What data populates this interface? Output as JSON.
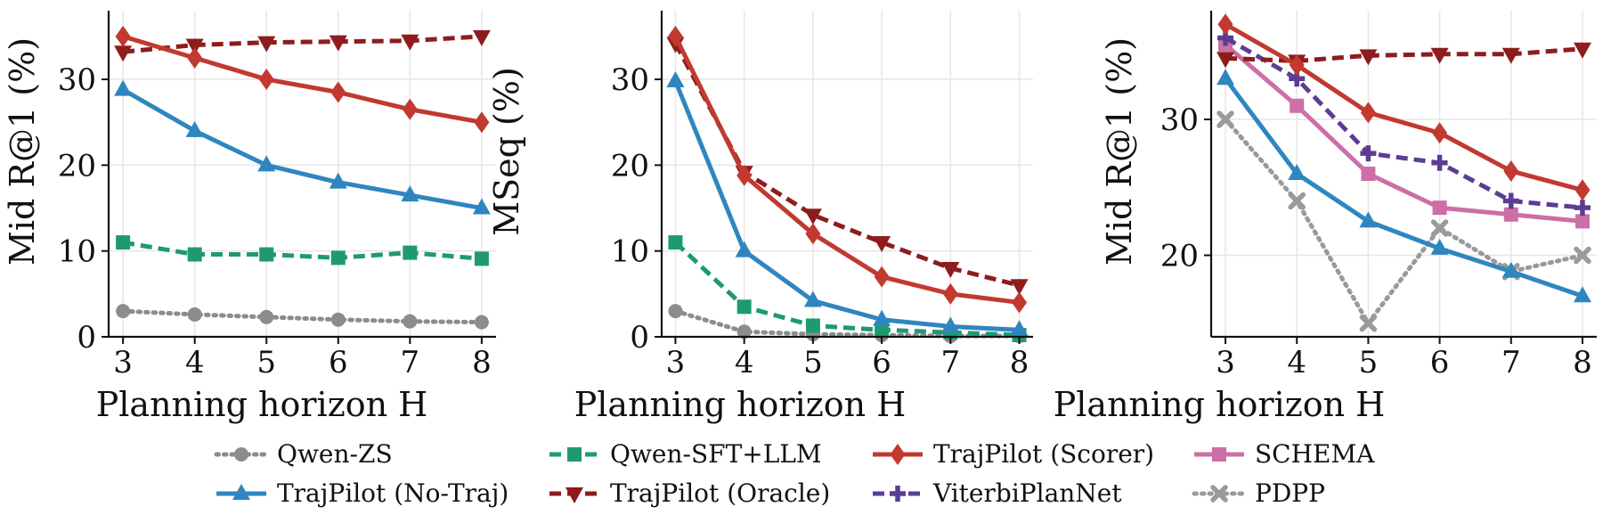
{
  "series_styles": {
    "Qwen-ZS": {
      "color": "#8c8c8c",
      "dash": "dotted",
      "marker": "circle"
    },
    "Qwen-SFT+LLM": {
      "color": "#1f9a70",
      "dash": "dashed",
      "marker": "square"
    },
    "TrajPilot (Scorer)": {
      "color": "#c1392f",
      "dash": "solid",
      "marker": "diamond"
    },
    "SCHEMA": {
      "color": "#cc6fa6",
      "dash": "solid",
      "marker": "square"
    },
    "TrajPilot (No-Traj)": {
      "color": "#2f86bf",
      "dash": "solid",
      "marker": "triangle-up"
    },
    "TrajPilot (Oracle)": {
      "color": "#8e1c1c",
      "dash": "dashed",
      "marker": "triangle-down"
    },
    "ViterbiPlanNet": {
      "color": "#5b3d94",
      "dash": "dashed",
      "marker": "plus"
    },
    "PDPP": {
      "color": "#9a9a9a",
      "dash": "dotted",
      "marker": "x"
    }
  },
  "legend": {
    "entries": [
      "Qwen-ZS",
      "Qwen-SFT+LLM",
      "TrajPilot (Scorer)",
      "SCHEMA",
      "TrajPilot (No-Traj)",
      "TrajPilot (Oracle)",
      "ViterbiPlanNet",
      "PDPP"
    ]
  },
  "chart_data": [
    {
      "type": "line",
      "xlabel": "Planning horizon H",
      "ylabel": "Mid R@1 (%)",
      "x": [
        3,
        4,
        5,
        6,
        7,
        8
      ],
      "xlim": [
        2.8,
        8.2
      ],
      "ylim": [
        0,
        38
      ],
      "yticks": [
        0,
        10,
        20,
        30
      ],
      "grid": true,
      "series": [
        {
          "name": "Qwen-ZS",
          "values": [
            3.0,
            2.6,
            2.3,
            2.0,
            1.8,
            1.7
          ]
        },
        {
          "name": "Qwen-SFT+LLM",
          "values": [
            11.0,
            9.6,
            9.6,
            9.2,
            9.8,
            9.1
          ]
        },
        {
          "name": "TrajPilot (No-Traj)",
          "values": [
            28.8,
            24.0,
            20.0,
            18.0,
            16.5,
            15.0
          ]
        },
        {
          "name": "TrajPilot (Oracle)",
          "values": [
            33.2,
            34.0,
            34.3,
            34.4,
            34.5,
            35.0
          ]
        },
        {
          "name": "TrajPilot (Scorer)",
          "values": [
            35.0,
            32.5,
            30.0,
            28.5,
            26.5,
            25.0
          ]
        }
      ]
    },
    {
      "type": "line",
      "xlabel": "Planning horizon H",
      "ylabel": "MSeq (%)",
      "x": [
        3,
        4,
        5,
        6,
        7,
        8
      ],
      "xlim": [
        2.8,
        8.2
      ],
      "ylim": [
        0,
        38
      ],
      "yticks": [
        0,
        10,
        20,
        30
      ],
      "grid": true,
      "series": [
        {
          "name": "Qwen-ZS",
          "values": [
            3.0,
            0.6,
            0.3,
            0.2,
            0.1,
            0.1
          ]
        },
        {
          "name": "Qwen-SFT+LLM",
          "values": [
            11.0,
            3.5,
            1.3,
            0.8,
            0.5,
            0.2
          ]
        },
        {
          "name": "TrajPilot (No-Traj)",
          "values": [
            29.8,
            10.0,
            4.2,
            2.0,
            1.2,
            0.8
          ]
        },
        {
          "name": "TrajPilot (Oracle)",
          "values": [
            34.2,
            19.2,
            14.2,
            11.0,
            8.0,
            6.0
          ]
        },
        {
          "name": "TrajPilot (Scorer)",
          "values": [
            35.0,
            18.8,
            12.0,
            7.0,
            5.0,
            4.0
          ]
        }
      ]
    },
    {
      "type": "line",
      "xlabel": "Planning horizon H",
      "ylabel": "Mid R@1 (%)",
      "x": [
        3,
        4,
        5,
        6,
        7,
        8
      ],
      "xlim": [
        2.8,
        8.2
      ],
      "ylim": [
        14,
        38
      ],
      "yticks": [
        20,
        30
      ],
      "grid": true,
      "series": [
        {
          "name": "PDPP",
          "values": [
            30.0,
            24.0,
            15.0,
            22.0,
            18.8,
            20.0
          ]
        },
        {
          "name": "TrajPilot (No-Traj)",
          "values": [
            33.0,
            26.0,
            22.5,
            20.5,
            18.8,
            17.0
          ]
        },
        {
          "name": "SCHEMA",
          "values": [
            35.5,
            31.0,
            26.0,
            23.5,
            23.0,
            22.5
          ]
        },
        {
          "name": "ViterbiPlanNet",
          "values": [
            36.0,
            33.0,
            27.5,
            26.8,
            24.0,
            23.5
          ]
        },
        {
          "name": "TrajPilot (Oracle)",
          "values": [
            34.5,
            34.3,
            34.7,
            34.8,
            34.8,
            35.2
          ]
        },
        {
          "name": "TrajPilot (Scorer)",
          "values": [
            37.0,
            34.0,
            30.5,
            29.0,
            26.2,
            24.8
          ]
        }
      ]
    }
  ]
}
